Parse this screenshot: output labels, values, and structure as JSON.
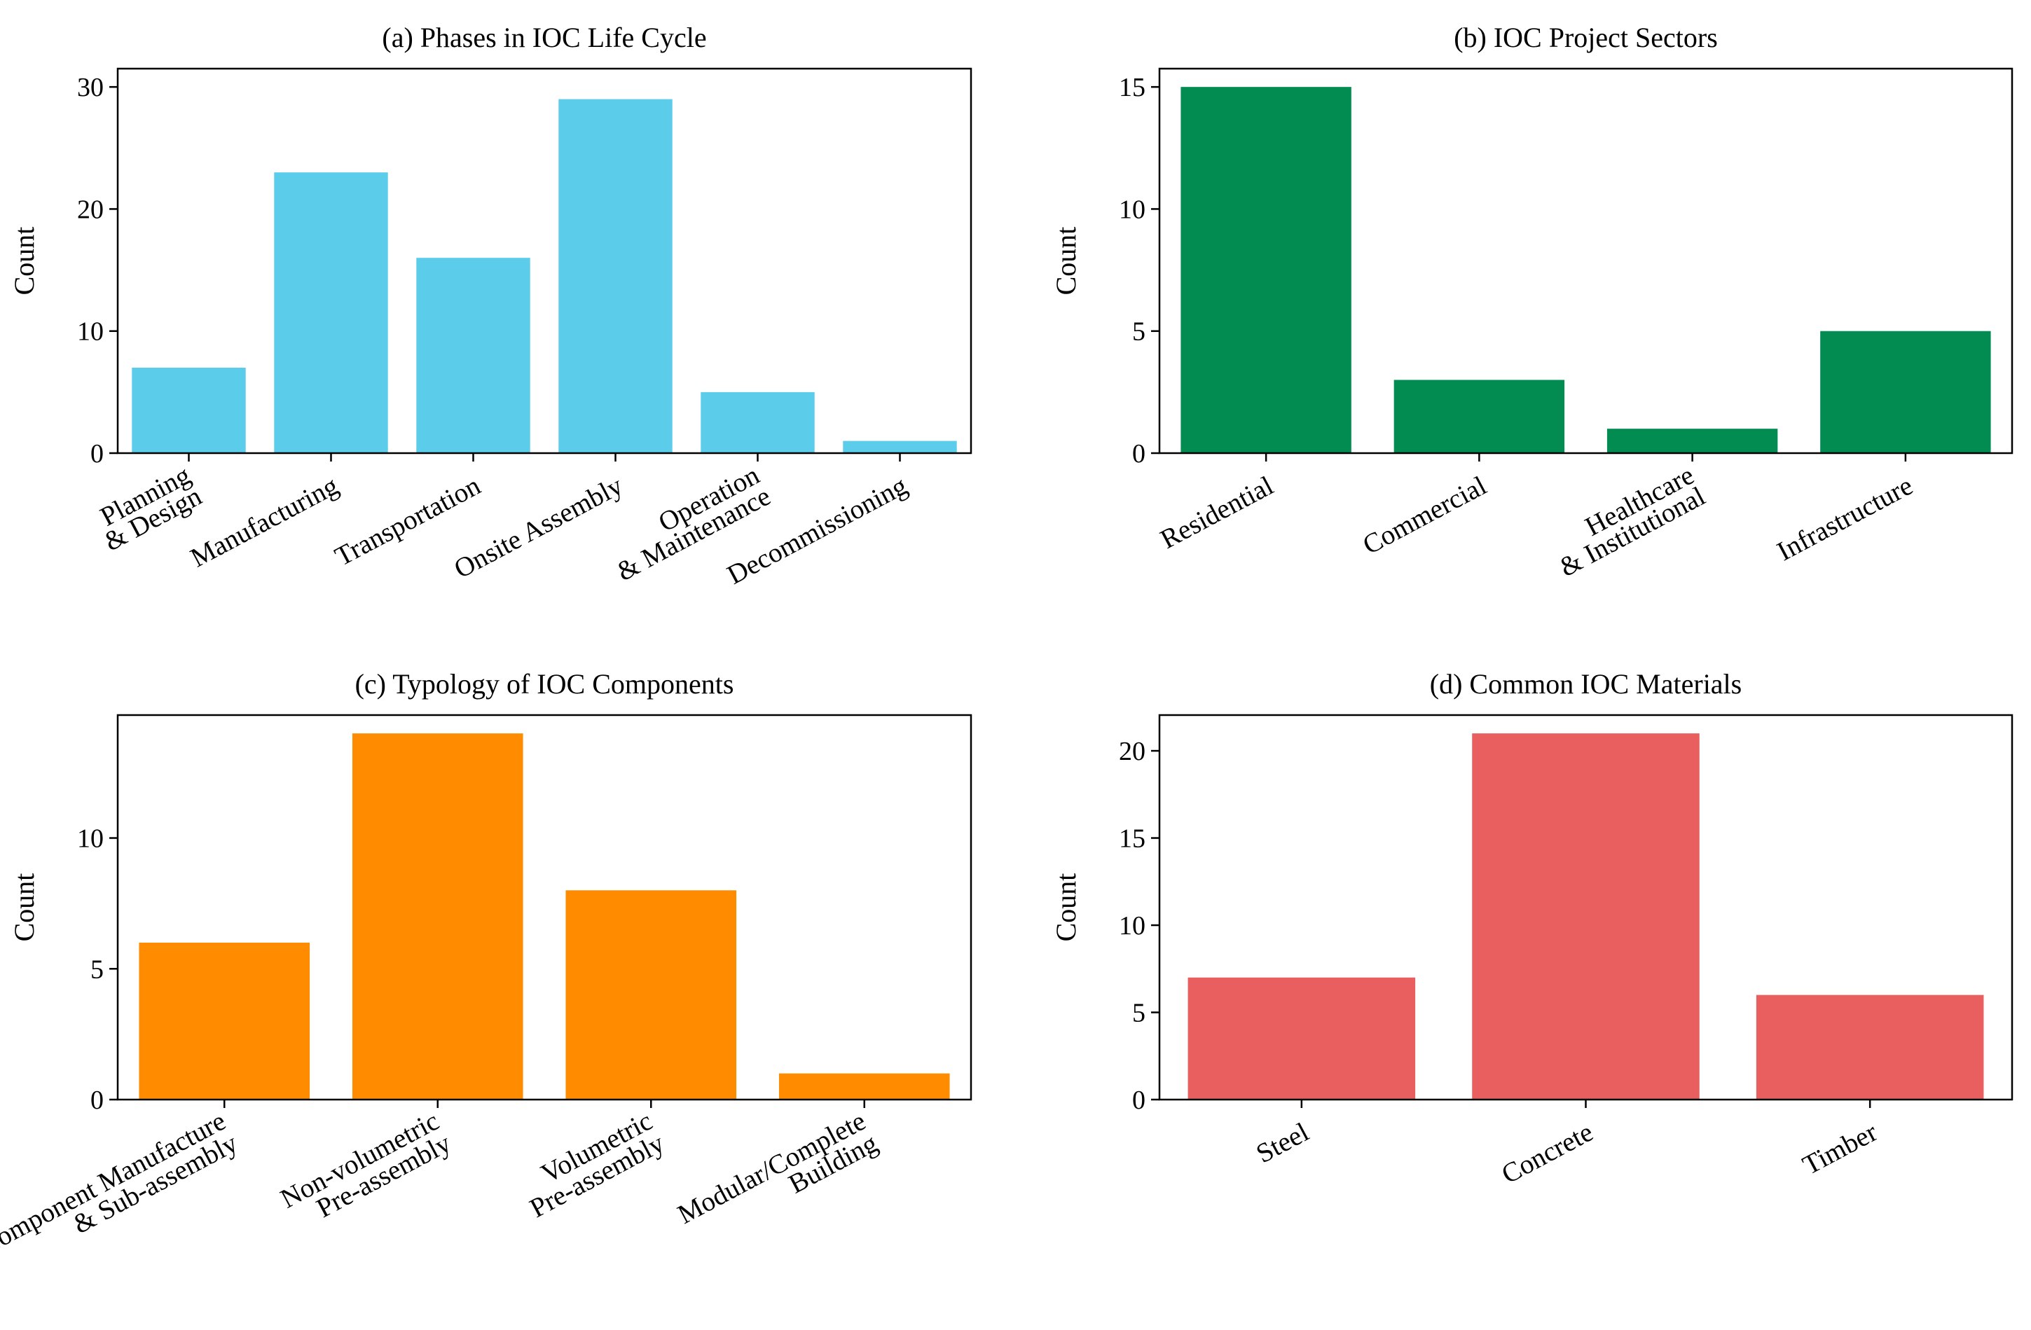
{
  "chart_data": [
    {
      "type": "bar",
      "title": "(a) Phases in IOC Life Cycle",
      "ylabel": "Count",
      "categories": [
        [
          "Planning",
          "& Design"
        ],
        [
          "Manufacturing"
        ],
        [
          "Transportation"
        ],
        [
          "Onsite Assembly"
        ],
        [
          "Operation",
          "& Maintenance"
        ],
        [
          "Decommissioning"
        ]
      ],
      "values": [
        7,
        23,
        16,
        29,
        5,
        1
      ],
      "ylim": [
        0,
        30
      ],
      "yticks": [
        0,
        10,
        20,
        30
      ],
      "color": "#5BCDEB",
      "grid": false
    },
    {
      "type": "bar",
      "title": "(b) IOC Project Sectors",
      "ylabel": "Count",
      "categories": [
        [
          "Residential"
        ],
        [
          "Commercial"
        ],
        [
          "Healthcare",
          "& Institutional"
        ],
        [
          "Infrastructure"
        ]
      ],
      "values": [
        15,
        3,
        1,
        5
      ],
      "ylim": [
        0,
        15
      ],
      "yticks": [
        0,
        5,
        10,
        15
      ],
      "color": "#038C52",
      "grid": false
    },
    {
      "type": "bar",
      "title": "(c) Typology of IOC Components",
      "ylabel": "Count",
      "categories": [
        [
          "Component Manufacture",
          "& Sub-assembly"
        ],
        [
          "Non-volumetric",
          "Pre-assembly"
        ],
        [
          "Volumetric",
          "Pre-assembly"
        ],
        [
          "Modular/Complete",
          "Building"
        ]
      ],
      "values": [
        6,
        14,
        8,
        1
      ],
      "ylim": [
        0,
        14
      ],
      "yticks": [
        0,
        5,
        10
      ],
      "color": "#FF8C00",
      "grid": false
    },
    {
      "type": "bar",
      "title": "(d) Common IOC Materials",
      "ylabel": "Count",
      "categories": [
        [
          "Steel"
        ],
        [
          "Concrete"
        ],
        [
          "Timber"
        ]
      ],
      "values": [
        7,
        21,
        6
      ],
      "ylim": [
        0,
        21
      ],
      "yticks": [
        0,
        5,
        10,
        15,
        20
      ],
      "color": "#E95E5E",
      "grid": false
    }
  ]
}
